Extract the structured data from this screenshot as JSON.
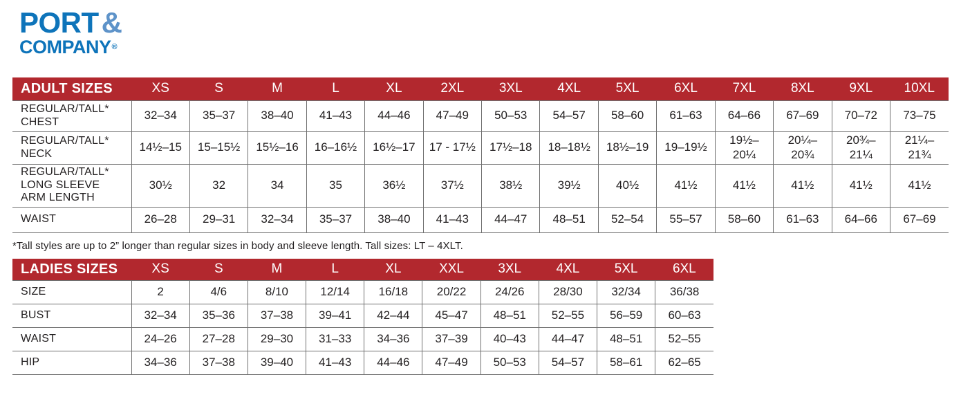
{
  "logo": {
    "word1": "PORT",
    "ampersand": "&",
    "word2": "COMPANY",
    "registered": "®"
  },
  "colors": {
    "header_red": "#B2282E",
    "logo_blue": "#0E74BA",
    "logo_light_blue": "#5E93C9",
    "text": "#242122",
    "grid_line": "#6F6F6F"
  },
  "tables": [
    {
      "id": "adult",
      "title": "ADULT SIZES",
      "columns": [
        "XS",
        "S",
        "M",
        "L",
        "XL",
        "2XL",
        "3XL",
        "4XL",
        "5XL",
        "6XL",
        "7XL",
        "8XL",
        "9XL",
        "10XL"
      ],
      "rows": [
        {
          "label": "REGULAR/TALL*\nCHEST",
          "values": [
            "32–34",
            "35–37",
            "38–40",
            "41–43",
            "44–46",
            "47–49",
            "50–53",
            "54–57",
            "58–60",
            "61–63",
            "64–66",
            "67–69",
            "70–72",
            "73–75"
          ]
        },
        {
          "label": "REGULAR/TALL*\nNECK",
          "values": [
            "14½–15",
            "15–15½",
            "15½–16",
            "16–16½",
            "16½–17",
            "17 - 17½",
            "17½–18",
            "18–18½",
            "18½–19",
            "19–19½",
            "19½–\n20¼",
            "20¼–\n20¾",
            "20¾–\n21¼",
            "21¼–\n21¾"
          ]
        },
        {
          "label": "REGULAR/TALL*\nLONG SLEEVE\nARM LENGTH",
          "values": [
            "30½",
            "32",
            "34",
            "35",
            "36½",
            "37½",
            "38½",
            "39½",
            "40½",
            "41½",
            "41½",
            "41½",
            "41½",
            "41½"
          ]
        },
        {
          "label": "WAIST",
          "values": [
            "26–28",
            "29–31",
            "32–34",
            "35–37",
            "38–40",
            "41–43",
            "44–47",
            "48–51",
            "52–54",
            "55–57",
            "58–60",
            "61–63",
            "64–66",
            "67–69"
          ]
        }
      ]
    },
    {
      "id": "ladies",
      "title": "LADIES SIZES",
      "columns": [
        "XS",
        "S",
        "M",
        "L",
        "XL",
        "XXL",
        "3XL",
        "4XL",
        "5XL",
        "6XL"
      ],
      "rows": [
        {
          "label": "SIZE",
          "values": [
            "2",
            "4/6",
            "8/10",
            "12/14",
            "16/18",
            "20/22",
            "24/26",
            "28/30",
            "32/34",
            "36/38"
          ]
        },
        {
          "label": "BUST",
          "values": [
            "32–34",
            "35–36",
            "37–38",
            "39–41",
            "42–44",
            "45–47",
            "48–51",
            "52–55",
            "56–59",
            "60–63"
          ]
        },
        {
          "label": "WAIST",
          "values": [
            "24–26",
            "27–28",
            "29–30",
            "31–33",
            "34–36",
            "37–39",
            "40–43",
            "44–47",
            "48–51",
            "52–55"
          ]
        },
        {
          "label": "HIP",
          "values": [
            "34–36",
            "37–38",
            "39–40",
            "41–43",
            "44–46",
            "47–49",
            "50–53",
            "54–57",
            "58–61",
            "62–65"
          ]
        }
      ]
    }
  ],
  "footnote": "*Tall styles are up to 2” longer than regular sizes in body and sleeve length. Tall sizes: LT – 4XLT."
}
